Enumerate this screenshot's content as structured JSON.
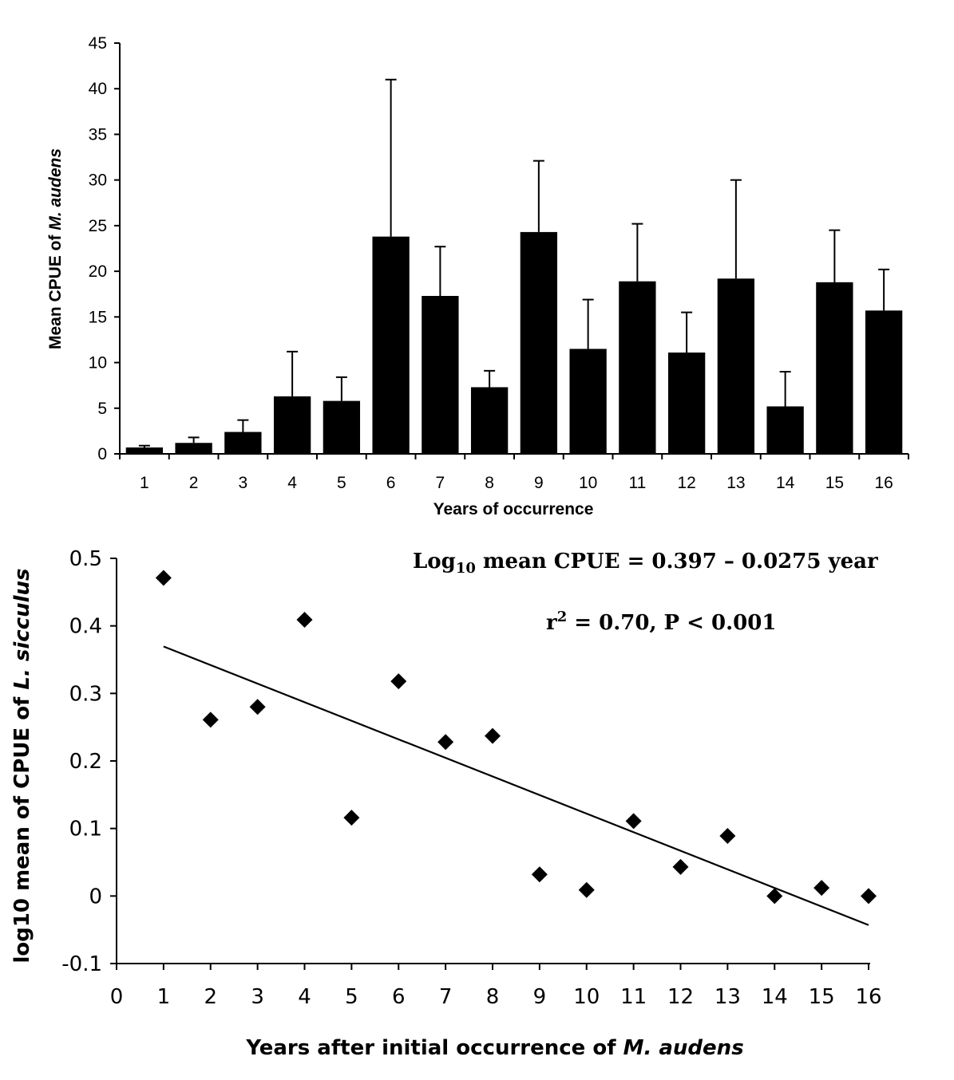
{
  "chart_data": [
    {
      "type": "bar",
      "title": "",
      "xlabel": "Years of occurrence",
      "ylabel_parts": [
        "Mean CPUE of ",
        "M. audens"
      ],
      "ylim": [
        0,
        45
      ],
      "yticks": [
        0,
        5,
        10,
        15,
        20,
        25,
        30,
        35,
        40,
        45
      ],
      "categories": [
        "1",
        "2",
        "3",
        "4",
        "5",
        "6",
        "7",
        "8",
        "9",
        "10",
        "11",
        "12",
        "13",
        "14",
        "15",
        "16"
      ],
      "values": [
        0.7,
        1.2,
        2.4,
        6.3,
        5.8,
        23.8,
        17.3,
        7.3,
        24.3,
        11.5,
        18.9,
        11.1,
        19.2,
        5.2,
        18.8,
        15.7
      ],
      "error_upper": [
        0.9,
        1.8,
        3.7,
        11.2,
        8.4,
        41.0,
        22.7,
        9.1,
        32.1,
        16.9,
        25.2,
        15.5,
        30.0,
        9.0,
        24.5,
        20.2
      ]
    },
    {
      "type": "scatter",
      "xlabel_parts": [
        "Years after initial occurrence of ",
        "M. audens"
      ],
      "ylabel_parts": [
        "log10 mean of CPUE of  ",
        "L. sicculus"
      ],
      "xlim": [
        0,
        16
      ],
      "ylim": [
        -0.1,
        0.5
      ],
      "xticks": [
        "0",
        "1",
        "2",
        "3",
        "4",
        "5",
        "6",
        "7",
        "8",
        "9",
        "10",
        "11",
        "12",
        "13",
        "14",
        "15",
        "16"
      ],
      "yticks": [
        "-0.1",
        "0",
        "0.1",
        "0.2",
        "0.3",
        "0.4",
        "0.5"
      ],
      "x": [
        1,
        2,
        3,
        4,
        5,
        6,
        7,
        8,
        9,
        10,
        11,
        12,
        13,
        14,
        15,
        16
      ],
      "y": [
        0.471,
        0.261,
        0.28,
        0.409,
        0.116,
        0.318,
        0.228,
        0.237,
        0.032,
        0.009,
        0.111,
        0.043,
        0.089,
        0.0,
        0.012,
        0.0
      ],
      "regression": {
        "intercept": 0.397,
        "slope": -0.0275,
        "x_range": [
          1,
          16
        ]
      },
      "annotations": {
        "equation_prefix": "Log",
        "equation_sub": "10",
        "equation_rest": " mean CPUE = 0.397 – 0.0275 year",
        "stats_prefix": "r",
        "stats_sup": "2",
        "stats_rest": " = 0.70, P < 0.001"
      }
    }
  ]
}
